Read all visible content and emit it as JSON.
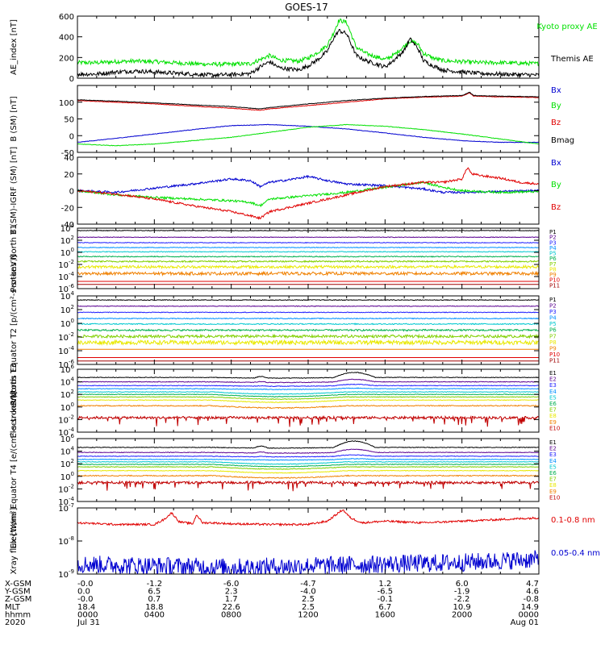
{
  "title": "GOES-17",
  "colors": {
    "axis": "#000000",
    "green": "#00e000",
    "blue": "#0000d0",
    "red": "#e00000",
    "black": "#000000"
  },
  "x_axis": {
    "start": "2020-07-31T00:00",
    "end": "2020-08-01T00:00",
    "tick_hours": [
      0,
      4,
      8,
      12,
      16,
      20,
      24
    ],
    "minor_per_major": 4,
    "rows": [
      {
        "label": "X-GSM",
        "values": [
          "-0.0",
          "-1.2",
          "-6.0",
          "-4.7",
          "1.2",
          "6.0",
          "4.7"
        ]
      },
      {
        "label": "Y-GSM",
        "values": [
          "0.0",
          "6.5",
          "2.3",
          "-4.0",
          "-6.5",
          "-1.9",
          "4.6"
        ]
      },
      {
        "label": "Z-GSM",
        "values": [
          "-0.0",
          "0.7",
          "1.7",
          "2.5",
          "-0.1",
          "-2.2",
          "-0.8"
        ]
      },
      {
        "label": "MLT",
        "values": [
          "18.4",
          "18.8",
          "22.6",
          "2.5",
          "6.7",
          "10.9",
          "14.9"
        ]
      },
      {
        "label": "hhmm",
        "values": [
          "0000",
          "0400",
          "0800",
          "1200",
          "1600",
          "2000",
          "0000"
        ]
      },
      {
        "label": "2020",
        "values": [
          "Jul 31",
          "",
          "",
          "",
          "",
          "",
          "Aug 01"
        ]
      }
    ]
  },
  "chart_data": [
    {
      "type": "line",
      "ylabel": "AE_index [nT]",
      "ylim": [
        0,
        600
      ],
      "ticks": [
        0,
        200,
        400,
        600
      ],
      "series": [
        {
          "name": "Kyoto proxy AE",
          "color": "#00e000",
          "kind": "ae",
          "x": [
            0,
            1,
            2,
            3,
            4,
            5,
            6,
            7,
            8,
            9,
            9.5,
            10,
            10.5,
            11,
            11.5,
            12,
            12.5,
            13,
            13.3,
            13.6,
            14,
            14.5,
            15,
            15.5,
            16,
            16.5,
            17,
            17.3,
            17.7,
            18,
            18.5,
            19,
            20,
            21,
            22,
            23,
            24
          ],
          "y": [
            150,
            150,
            160,
            165,
            160,
            150,
            140,
            135,
            135,
            140,
            180,
            220,
            175,
            170,
            165,
            195,
            250,
            320,
            430,
            560,
            540,
            300,
            240,
            210,
            180,
            230,
            310,
            360,
            330,
            240,
            195,
            170,
            160,
            150,
            150,
            145,
            140
          ]
        },
        {
          "name": "Themis AE",
          "color": "#000000",
          "kind": "ae",
          "x": [
            0,
            1,
            2,
            3,
            4,
            5,
            6,
            7,
            8,
            9,
            9.5,
            10,
            10.5,
            11,
            11.5,
            12,
            12.5,
            13,
            13.3,
            13.6,
            14,
            14.5,
            15,
            15.5,
            16,
            16.5,
            17,
            17.3,
            17.7,
            18,
            18.5,
            19,
            20,
            21,
            22,
            23,
            24
          ],
          "y": [
            40,
            40,
            60,
            70,
            60,
            50,
            40,
            30,
            35,
            45,
            110,
            160,
            100,
            90,
            80,
            120,
            180,
            260,
            380,
            460,
            430,
            220,
            170,
            140,
            110,
            180,
            270,
            380,
            290,
            170,
            120,
            80,
            60,
            45,
            40,
            35,
            30
          ]
        }
      ]
    },
    {
      "type": "line",
      "ylabel": "B (SM) [nT]",
      "ylim": [
        -50,
        150
      ],
      "ticks": [
        -50,
        0,
        50,
        100
      ],
      "series": [
        {
          "name": "Bx",
          "color": "#0000d0",
          "kind": "smooth",
          "x": [
            0,
            2,
            4,
            6,
            8,
            10,
            12,
            14,
            16,
            18,
            20,
            22,
            24
          ],
          "y": [
            -20,
            -8,
            5,
            18,
            30,
            33,
            28,
            20,
            8,
            -5,
            -15,
            -20,
            -20
          ]
        },
        {
          "name": "By",
          "color": "#00e000",
          "kind": "smooth",
          "x": [
            0,
            2,
            4,
            6,
            8,
            10,
            12,
            14,
            16,
            18,
            20,
            22,
            24
          ],
          "y": [
            -25,
            -30,
            -25,
            -15,
            -5,
            10,
            25,
            33,
            28,
            18,
            5,
            -10,
            -25
          ]
        },
        {
          "name": "Bz",
          "color": "#e00000",
          "kind": "smooth",
          "x": [
            0,
            2,
            4,
            6,
            8,
            9.5,
            10,
            12,
            14,
            16,
            18,
            20,
            20.4,
            20.6,
            22,
            24
          ],
          "y": [
            105,
            100,
            95,
            88,
            82,
            76,
            80,
            90,
            100,
            110,
            115,
            118,
            128,
            118,
            116,
            114
          ]
        },
        {
          "name": "Bmag",
          "color": "#000000",
          "kind": "smooth",
          "x": [
            0,
            2,
            4,
            6,
            8,
            9.5,
            10,
            12,
            14,
            16,
            18,
            20,
            20.4,
            20.6,
            22,
            24
          ],
          "y": [
            107,
            103,
            98,
            92,
            87,
            80,
            84,
            95,
            105,
            112,
            117,
            120,
            130,
            120,
            118,
            116
          ]
        }
      ]
    },
    {
      "type": "line",
      "ylabel": "B (SM)-IGRF (SM) [nT]",
      "ylim": [
        -40,
        40
      ],
      "ticks": [
        -40,
        -20,
        0,
        20,
        40
      ],
      "series": [
        {
          "name": "Bx",
          "color": "#0000d0",
          "kind": "noisy",
          "x": [
            0,
            2,
            4,
            6,
            8,
            9,
            9.5,
            10,
            11,
            12,
            13,
            14,
            16,
            18,
            19,
            20,
            22,
            24
          ],
          "y": [
            0,
            -2,
            3,
            8,
            14,
            12,
            5,
            10,
            13,
            17,
            12,
            8,
            6,
            2,
            -2,
            -2,
            -1,
            0
          ]
        },
        {
          "name": "By",
          "color": "#00e000",
          "kind": "noisy",
          "x": [
            0,
            2,
            4,
            6,
            8,
            9,
            9.5,
            10,
            12,
            14,
            16,
            18,
            19,
            20,
            22,
            24
          ],
          "y": [
            0,
            -5,
            -8,
            -10,
            -12,
            -14,
            -18,
            -10,
            -6,
            -2,
            4,
            10,
            4,
            0,
            -2,
            -1
          ]
        },
        {
          "name": "Bz",
          "color": "#e00000",
          "kind": "noisy",
          "x": [
            0,
            2,
            4,
            6,
            8,
            9,
            9.5,
            10,
            12,
            14,
            16,
            18,
            19,
            20,
            20.3,
            20.5,
            21,
            22,
            23,
            24
          ],
          "y": [
            0,
            -4,
            -10,
            -18,
            -25,
            -30,
            -33,
            -25,
            -15,
            -5,
            5,
            10,
            10,
            14,
            28,
            20,
            18,
            15,
            10,
            8
          ]
        }
      ]
    },
    {
      "type": "line",
      "ylabel": "Protons North T1",
      "scale": "log",
      "ylim": [
        -6,
        4
      ],
      "ticks": [
        4,
        2,
        0,
        -2,
        -4,
        -6
      ],
      "series": [
        {
          "name": "P1",
          "color": "#000000",
          "kind": "flat",
          "base": 3.6,
          "amp": 0.05
        },
        {
          "name": "P2",
          "color": "#5a0090",
          "kind": "flat",
          "base": 2.5,
          "amp": 0.05
        },
        {
          "name": "P3",
          "color": "#2020ff",
          "kind": "flat",
          "base": 1.6,
          "amp": 0.05
        },
        {
          "name": "P4",
          "color": "#0090ff",
          "kind": "flat",
          "base": 0.8,
          "amp": 0.05
        },
        {
          "name": "P5",
          "color": "#00c8d0",
          "kind": "flat",
          "base": 0.1,
          "amp": 0.06
        },
        {
          "name": "P6",
          "color": "#00b050",
          "kind": "flat",
          "base": -0.7,
          "amp": 0.08
        },
        {
          "name": "P7",
          "color": "#80d000",
          "kind": "flat",
          "base": -1.5,
          "amp": 0.12
        },
        {
          "name": "P8",
          "color": "#e8e800",
          "kind": "flat",
          "base": -2.4,
          "amp": 0.22
        },
        {
          "name": "P9",
          "color": "#f08000",
          "kind": "flat",
          "base": -3.5,
          "amp": 0.25
        },
        {
          "name": "P10",
          "color": "#e00000",
          "kind": "flat",
          "base": -4.8,
          "amp": 0.0
        },
        {
          "name": "P11",
          "color": "#a00000",
          "kind": "flat",
          "base": -5.3,
          "amp": 0.0
        }
      ]
    },
    {
      "type": "line",
      "ylabel": "Protons Equator T2 [p/(cm²-s-sr-keV)]",
      "scale": "log",
      "ylim": [
        -6,
        4
      ],
      "ticks": [
        4,
        2,
        0,
        -2,
        -4,
        -6
      ],
      "series": [
        {
          "name": "P1",
          "color": "#000000",
          "kind": "flat",
          "base": 3.4,
          "amp": 0.05
        },
        {
          "name": "P2",
          "color": "#5a0090",
          "kind": "flat",
          "base": 2.5,
          "amp": 0.05
        },
        {
          "name": "P3",
          "color": "#2020ff",
          "kind": "flat",
          "base": 1.6,
          "amp": 0.05
        },
        {
          "name": "P4",
          "color": "#0090ff",
          "kind": "flat",
          "base": 0.7,
          "amp": 0.06
        },
        {
          "name": "P5",
          "color": "#00c8d0",
          "kind": "flat",
          "base": -0.1,
          "amp": 0.08
        },
        {
          "name": "P6",
          "color": "#00b050",
          "kind": "flat",
          "base": -1.0,
          "amp": 0.12
        },
        {
          "name": "P7",
          "color": "#80d000",
          "kind": "flat",
          "base": -1.9,
          "amp": 0.2
        },
        {
          "name": "P8",
          "color": "#e8e800",
          "kind": "flat",
          "base": -2.8,
          "amp": 0.3
        },
        {
          "name": "P9",
          "color": "#f08000",
          "kind": "flat",
          "base": -3.8,
          "amp": 0.0
        },
        {
          "name": "P10",
          "color": "#e00000",
          "kind": "flat",
          "base": -5.0,
          "amp": 0.0
        },
        {
          "name": "P11",
          "color": "#a00000",
          "kind": "flat",
          "base": -5.5,
          "amp": 0.0
        }
      ]
    },
    {
      "type": "line",
      "ylabel": "Electrons North T3",
      "scale": "log",
      "ylim": [
        -4,
        6
      ],
      "ticks": [
        6,
        4,
        2,
        0,
        -2,
        -4
      ],
      "series": [
        {
          "name": "E1",
          "color": "#000000",
          "kind": "electron",
          "base": 4.7,
          "amp": 0.05,
          "bump": 0.8
        },
        {
          "name": "E2",
          "color": "#5a0090",
          "kind": "electron",
          "base": 4.0,
          "amp": 0.05,
          "bump": 0.4
        },
        {
          "name": "E3",
          "color": "#2020ff",
          "kind": "electron",
          "base": 3.4,
          "amp": 0.05,
          "bump": 0.2
        },
        {
          "name": "E4",
          "color": "#0090ff",
          "kind": "electron",
          "base": 2.9,
          "amp": 0.05,
          "bump": 0.1
        },
        {
          "name": "E5",
          "color": "#00c8d0",
          "kind": "electron",
          "base": 2.4,
          "amp": 0.05,
          "bump": 0.0
        },
        {
          "name": "E6",
          "color": "#00b050",
          "kind": "electron",
          "base": 2.0,
          "amp": 0.05,
          "bump": 0.0
        },
        {
          "name": "E7",
          "color": "#80d000",
          "kind": "electron",
          "base": 1.6,
          "amp": 0.05,
          "bump": 0.0
        },
        {
          "name": "E8",
          "color": "#e8e800",
          "kind": "electron",
          "base": 1.1,
          "amp": 0.05,
          "bump": 0.0
        },
        {
          "name": "E9",
          "color": "#f08000",
          "kind": "electron",
          "base": 0.2,
          "amp": 0.08,
          "bump": 0.0
        },
        {
          "name": "E10",
          "color": "#c00000",
          "kind": "spiky",
          "base": -1.7,
          "amp": 0.2,
          "bump": 0.0
        }
      ]
    },
    {
      "type": "line",
      "ylabel": "Electrons Equator T4 [e/(cm²-s-sr-keV)]",
      "scale": "log",
      "ylim": [
        -4,
        6
      ],
      "ticks": [
        6,
        4,
        2,
        0,
        -2,
        -4
      ],
      "series": [
        {
          "name": "E1",
          "color": "#000000",
          "kind": "electron",
          "base": 4.6,
          "amp": 0.05,
          "bump": 1.0
        },
        {
          "name": "E2",
          "color": "#5a0090",
          "kind": "electron",
          "base": 3.8,
          "amp": 0.05,
          "bump": 0.5
        },
        {
          "name": "E3",
          "color": "#2020ff",
          "kind": "electron",
          "base": 3.2,
          "amp": 0.05,
          "bump": 0.2
        },
        {
          "name": "E4",
          "color": "#0090ff",
          "kind": "electron",
          "base": 2.7,
          "amp": 0.05,
          "bump": 0.1
        },
        {
          "name": "E5",
          "color": "#00c8d0",
          "kind": "electron",
          "base": 2.3,
          "amp": 0.05,
          "bump": 0.0
        },
        {
          "name": "E6",
          "color": "#00b050",
          "kind": "electron",
          "base": 1.9,
          "amp": 0.05,
          "bump": 0.0
        },
        {
          "name": "E7",
          "color": "#80d000",
          "kind": "electron",
          "base": 1.5,
          "amp": 0.05,
          "bump": 0.0
        },
        {
          "name": "E8",
          "color": "#e8e800",
          "kind": "electron",
          "base": 0.9,
          "amp": 0.05,
          "bump": 0.0
        },
        {
          "name": "E9",
          "color": "#f08000",
          "kind": "electron",
          "base": 0.1,
          "amp": 0.08,
          "bump": 0.0
        },
        {
          "name": "E10",
          "color": "#c00000",
          "kind": "spiky",
          "base": -1.0,
          "amp": 0.2,
          "bump": 0.0
        }
      ]
    },
    {
      "type": "line",
      "ylabel": "Xray flux [W/m²]",
      "scale": "log",
      "ylim": [
        -9,
        -7
      ],
      "ticks": [
        -7,
        -8,
        -9
      ],
      "series": [
        {
          "name": "0.1-0.8 nm",
          "color": "#e00000",
          "kind": "xray_long",
          "x": [
            0,
            2,
            4,
            4.5,
            4.9,
            5.3,
            6,
            6.2,
            6.5,
            7,
            8,
            10,
            12,
            13,
            13.8,
            14.2,
            14.8,
            16,
            18,
            20,
            22,
            24
          ],
          "y": [
            -7.45,
            -7.5,
            -7.5,
            -7.35,
            -7.15,
            -7.42,
            -7.48,
            -7.2,
            -7.45,
            -7.45,
            -7.48,
            -7.5,
            -7.5,
            -7.4,
            -7.05,
            -7.3,
            -7.45,
            -7.4,
            -7.45,
            -7.4,
            -7.35,
            -7.3
          ]
        },
        {
          "name": "0.05-0.4 nm",
          "color": "#0000d0",
          "kind": "xray_short",
          "x": [
            0,
            4,
            8,
            12,
            16,
            20,
            24
          ],
          "y": [
            -8.7,
            -8.75,
            -8.8,
            -8.75,
            -8.7,
            -8.65,
            -8.55
          ]
        }
      ]
    }
  ]
}
